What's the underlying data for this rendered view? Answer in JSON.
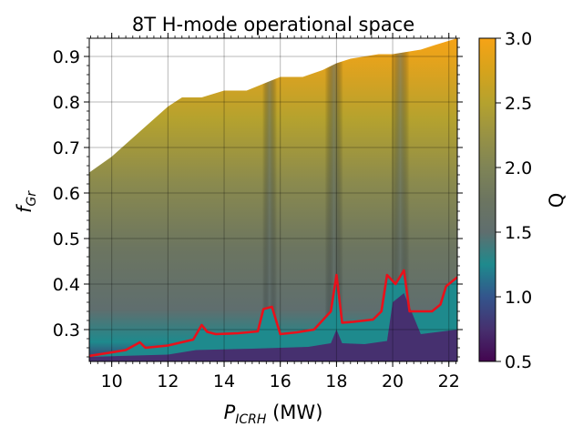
{
  "chart_data": {
    "type": "contour",
    "title": "8T H-mode operational space",
    "xlabel": {
      "base": "P",
      "sub": "ICRH",
      "unit": " (MW)"
    },
    "ylabel": {
      "base": "f",
      "sub": "Gr"
    },
    "xlim": [
      9.2,
      22.3
    ],
    "ylim": [
      0.23,
      0.94
    ],
    "xticks": [
      10,
      12,
      14,
      16,
      18,
      20,
      22
    ],
    "xtick_labels": [
      "10",
      "12",
      "14",
      "16",
      "18",
      "20",
      "22"
    ],
    "yticks": [
      0.3,
      0.4,
      0.5,
      0.6,
      0.7,
      0.8,
      0.9
    ],
    "ytick_labels": [
      "0.3",
      "0.4",
      "0.5",
      "0.6",
      "0.7",
      "0.8",
      "0.9"
    ],
    "grid": true,
    "colorbar": {
      "label": "Q",
      "range": [
        0.5,
        3.0
      ],
      "ticks": [
        0.5,
        1.0,
        1.5,
        2.0,
        2.5,
        3.0
      ],
      "tick_labels": [
        "0.5",
        "1.0",
        "1.5",
        "2.0",
        "2.5",
        "3.0"
      ],
      "colors": [
        "#43054f",
        "#46306f",
        "#33558c",
        "#1e8a8d",
        "#5f6e6e",
        "#6c7560",
        "#7f8456",
        "#989244",
        "#b5a22e",
        "#d6a31c",
        "#f6a316"
      ]
    },
    "upper_boundary": {
      "x": [
        9.2,
        10.0,
        11.0,
        12.0,
        12.5,
        13.2,
        14.0,
        14.8,
        15.4,
        16.0,
        16.8,
        17.5,
        18.0,
        18.5,
        19.0,
        19.5,
        20.0,
        20.5,
        21.0,
        21.5,
        22.3
      ],
      "y": [
        0.645,
        0.68,
        0.735,
        0.79,
        0.81,
        0.81,
        0.825,
        0.825,
        0.84,
        0.855,
        0.855,
        0.87,
        0.885,
        0.895,
        0.9,
        0.905,
        0.905,
        0.91,
        0.915,
        0.925,
        0.94
      ]
    },
    "q_equals_1_contour": {
      "x": [
        9.2,
        10.5,
        11.0,
        11.2,
        12.0,
        12.9,
        13.2,
        13.4,
        13.7,
        14.5,
        15.2,
        15.4,
        15.7,
        16.0,
        16.6,
        17.2,
        17.8,
        18.0,
        18.2,
        18.6,
        19.3,
        19.6,
        19.8,
        20.1,
        20.4,
        20.6,
        21.0,
        21.4,
        21.7,
        21.9,
        22.3
      ],
      "y": [
        0.242,
        0.255,
        0.272,
        0.26,
        0.265,
        0.278,
        0.31,
        0.295,
        0.29,
        0.292,
        0.296,
        0.345,
        0.35,
        0.29,
        0.294,
        0.3,
        0.34,
        0.42,
        0.315,
        0.317,
        0.322,
        0.34,
        0.42,
        0.4,
        0.43,
        0.34,
        0.34,
        0.34,
        0.355,
        0.395,
        0.415
      ]
    },
    "q_floor": {
      "x": [
        9.2,
        12.0,
        13.0,
        15.0,
        16.0,
        17.0,
        17.8,
        18.0,
        18.2,
        19.0,
        19.8,
        20.0,
        20.4,
        21.0,
        22.3
      ],
      "y": [
        0.24,
        0.245,
        0.255,
        0.258,
        0.26,
        0.262,
        0.27,
        0.3,
        0.27,
        0.268,
        0.275,
        0.36,
        0.38,
        0.29,
        0.3
      ]
    }
  }
}
